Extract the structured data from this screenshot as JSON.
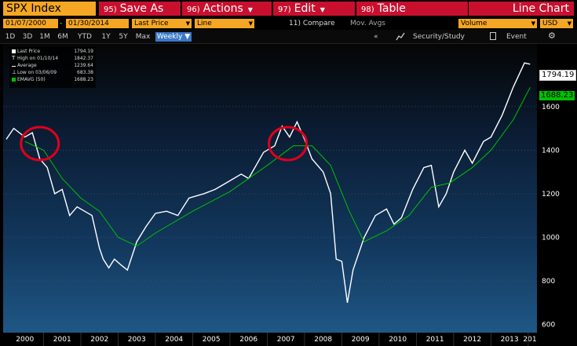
{
  "toolbar": {
    "ticker": "SPX Index",
    "save_as": {
      "num": "95)",
      "label": "Save As"
    },
    "actions": {
      "num": "96)",
      "label": "Actions"
    },
    "edit": {
      "num": "97)",
      "label": "Edit"
    },
    "table": {
      "num": "98)",
      "label": "Table"
    },
    "chart_type": "Line Chart"
  },
  "settings": {
    "start_date": "01/07/2000",
    "end_date": "01/30/2014",
    "price_field": "Last Price",
    "style": "Line",
    "compare": "11) Compare",
    "mov_avgs": "Mov. Avgs",
    "volume": "Volume",
    "currency": "USD"
  },
  "periods": [
    "1D",
    "3D",
    "1M",
    "6M",
    "YTD",
    "1Y",
    "5Y",
    "Max",
    "Weekly"
  ],
  "active_period": "Weekly",
  "tools": {
    "collapse": "«",
    "security_study": "Security/Study",
    "event": "Event",
    "gear": "⚙"
  },
  "legend": [
    {
      "label": "Last Price",
      "value": "1794.19"
    },
    {
      "label": "High on 01/10/14",
      "value": "1842.37"
    },
    {
      "label": "Average",
      "value": "1239.64"
    },
    {
      "label": "Low on 03/06/09",
      "value": "683.38"
    },
    {
      "label": "EMAVG (50)",
      "value": "1688.23"
    }
  ],
  "price_tags": {
    "last": "1794.19",
    "emavg": "1688.23"
  },
  "colors": {
    "orange": "#f5a623",
    "red": "#c8102e",
    "green": "#00c000",
    "blue": "#3a78c8"
  },
  "chart_data": {
    "type": "line",
    "x_labels": [
      "2000",
      "2001",
      "2002",
      "2003",
      "2004",
      "2005",
      "2006",
      "2007",
      "2008",
      "2009",
      "2010",
      "2011",
      "2012",
      "2013",
      "201"
    ],
    "y_ticks": [
      600,
      800,
      1000,
      1200,
      1400,
      1600
    ],
    "ylim": [
      570,
      1880
    ],
    "series": [
      {
        "name": "Last Price",
        "color": "#ffffff",
        "x": [
          2000.0,
          2000.2,
          2000.5,
          2000.7,
          2000.9,
          2001.1,
          2001.3,
          2001.5,
          2001.7,
          2001.9,
          2002.1,
          2002.3,
          2002.5,
          2002.6,
          2002.75,
          2002.9,
          2003.1,
          2003.25,
          2003.5,
          2003.75,
          2004.0,
          2004.3,
          2004.6,
          2004.9,
          2005.3,
          2005.6,
          2005.9,
          2006.3,
          2006.5,
          2006.9,
          2007.2,
          2007.4,
          2007.6,
          2007.8,
          2008.0,
          2008.2,
          2008.5,
          2008.7,
          2008.85,
          2009.0,
          2009.15,
          2009.3,
          2009.6,
          2009.9,
          2010.2,
          2010.4,
          2010.6,
          2010.9,
          2011.2,
          2011.4,
          2011.6,
          2011.8,
          2012.0,
          2012.3,
          2012.5,
          2012.8,
          2013.0,
          2013.3,
          2013.6,
          2013.9,
          2014.05
        ],
        "y": [
          1450,
          1500,
          1460,
          1480,
          1360,
          1320,
          1200,
          1220,
          1100,
          1140,
          1120,
          1100,
          950,
          900,
          860,
          900,
          870,
          850,
          980,
          1050,
          1110,
          1120,
          1100,
          1180,
          1200,
          1220,
          1250,
          1290,
          1270,
          1390,
          1420,
          1510,
          1460,
          1530,
          1450,
          1360,
          1300,
          1200,
          900,
          890,
          700,
          850,
          1000,
          1100,
          1130,
          1060,
          1090,
          1220,
          1320,
          1330,
          1140,
          1200,
          1300,
          1400,
          1340,
          1440,
          1460,
          1560,
          1690,
          1800,
          1794.19
        ]
      },
      {
        "name": "EMAVG (50)",
        "color": "#00c000",
        "x": [
          2000.5,
          2001.0,
          2001.5,
          2002.0,
          2002.5,
          2003.0,
          2003.5,
          2004.0,
          2005.0,
          2006.0,
          2007.0,
          2007.7,
          2008.2,
          2008.7,
          2009.2,
          2009.6,
          2010.2,
          2010.8,
          2011.4,
          2011.9,
          2012.5,
          2013.0,
          2013.6,
          2014.05
        ],
        "y": [
          1440,
          1400,
          1270,
          1180,
          1120,
          1000,
          960,
          1020,
          1120,
          1210,
          1330,
          1420,
          1420,
          1330,
          1120,
          980,
          1030,
          1100,
          1230,
          1250,
          1320,
          1400,
          1540,
          1688.23
        ]
      }
    ]
  }
}
